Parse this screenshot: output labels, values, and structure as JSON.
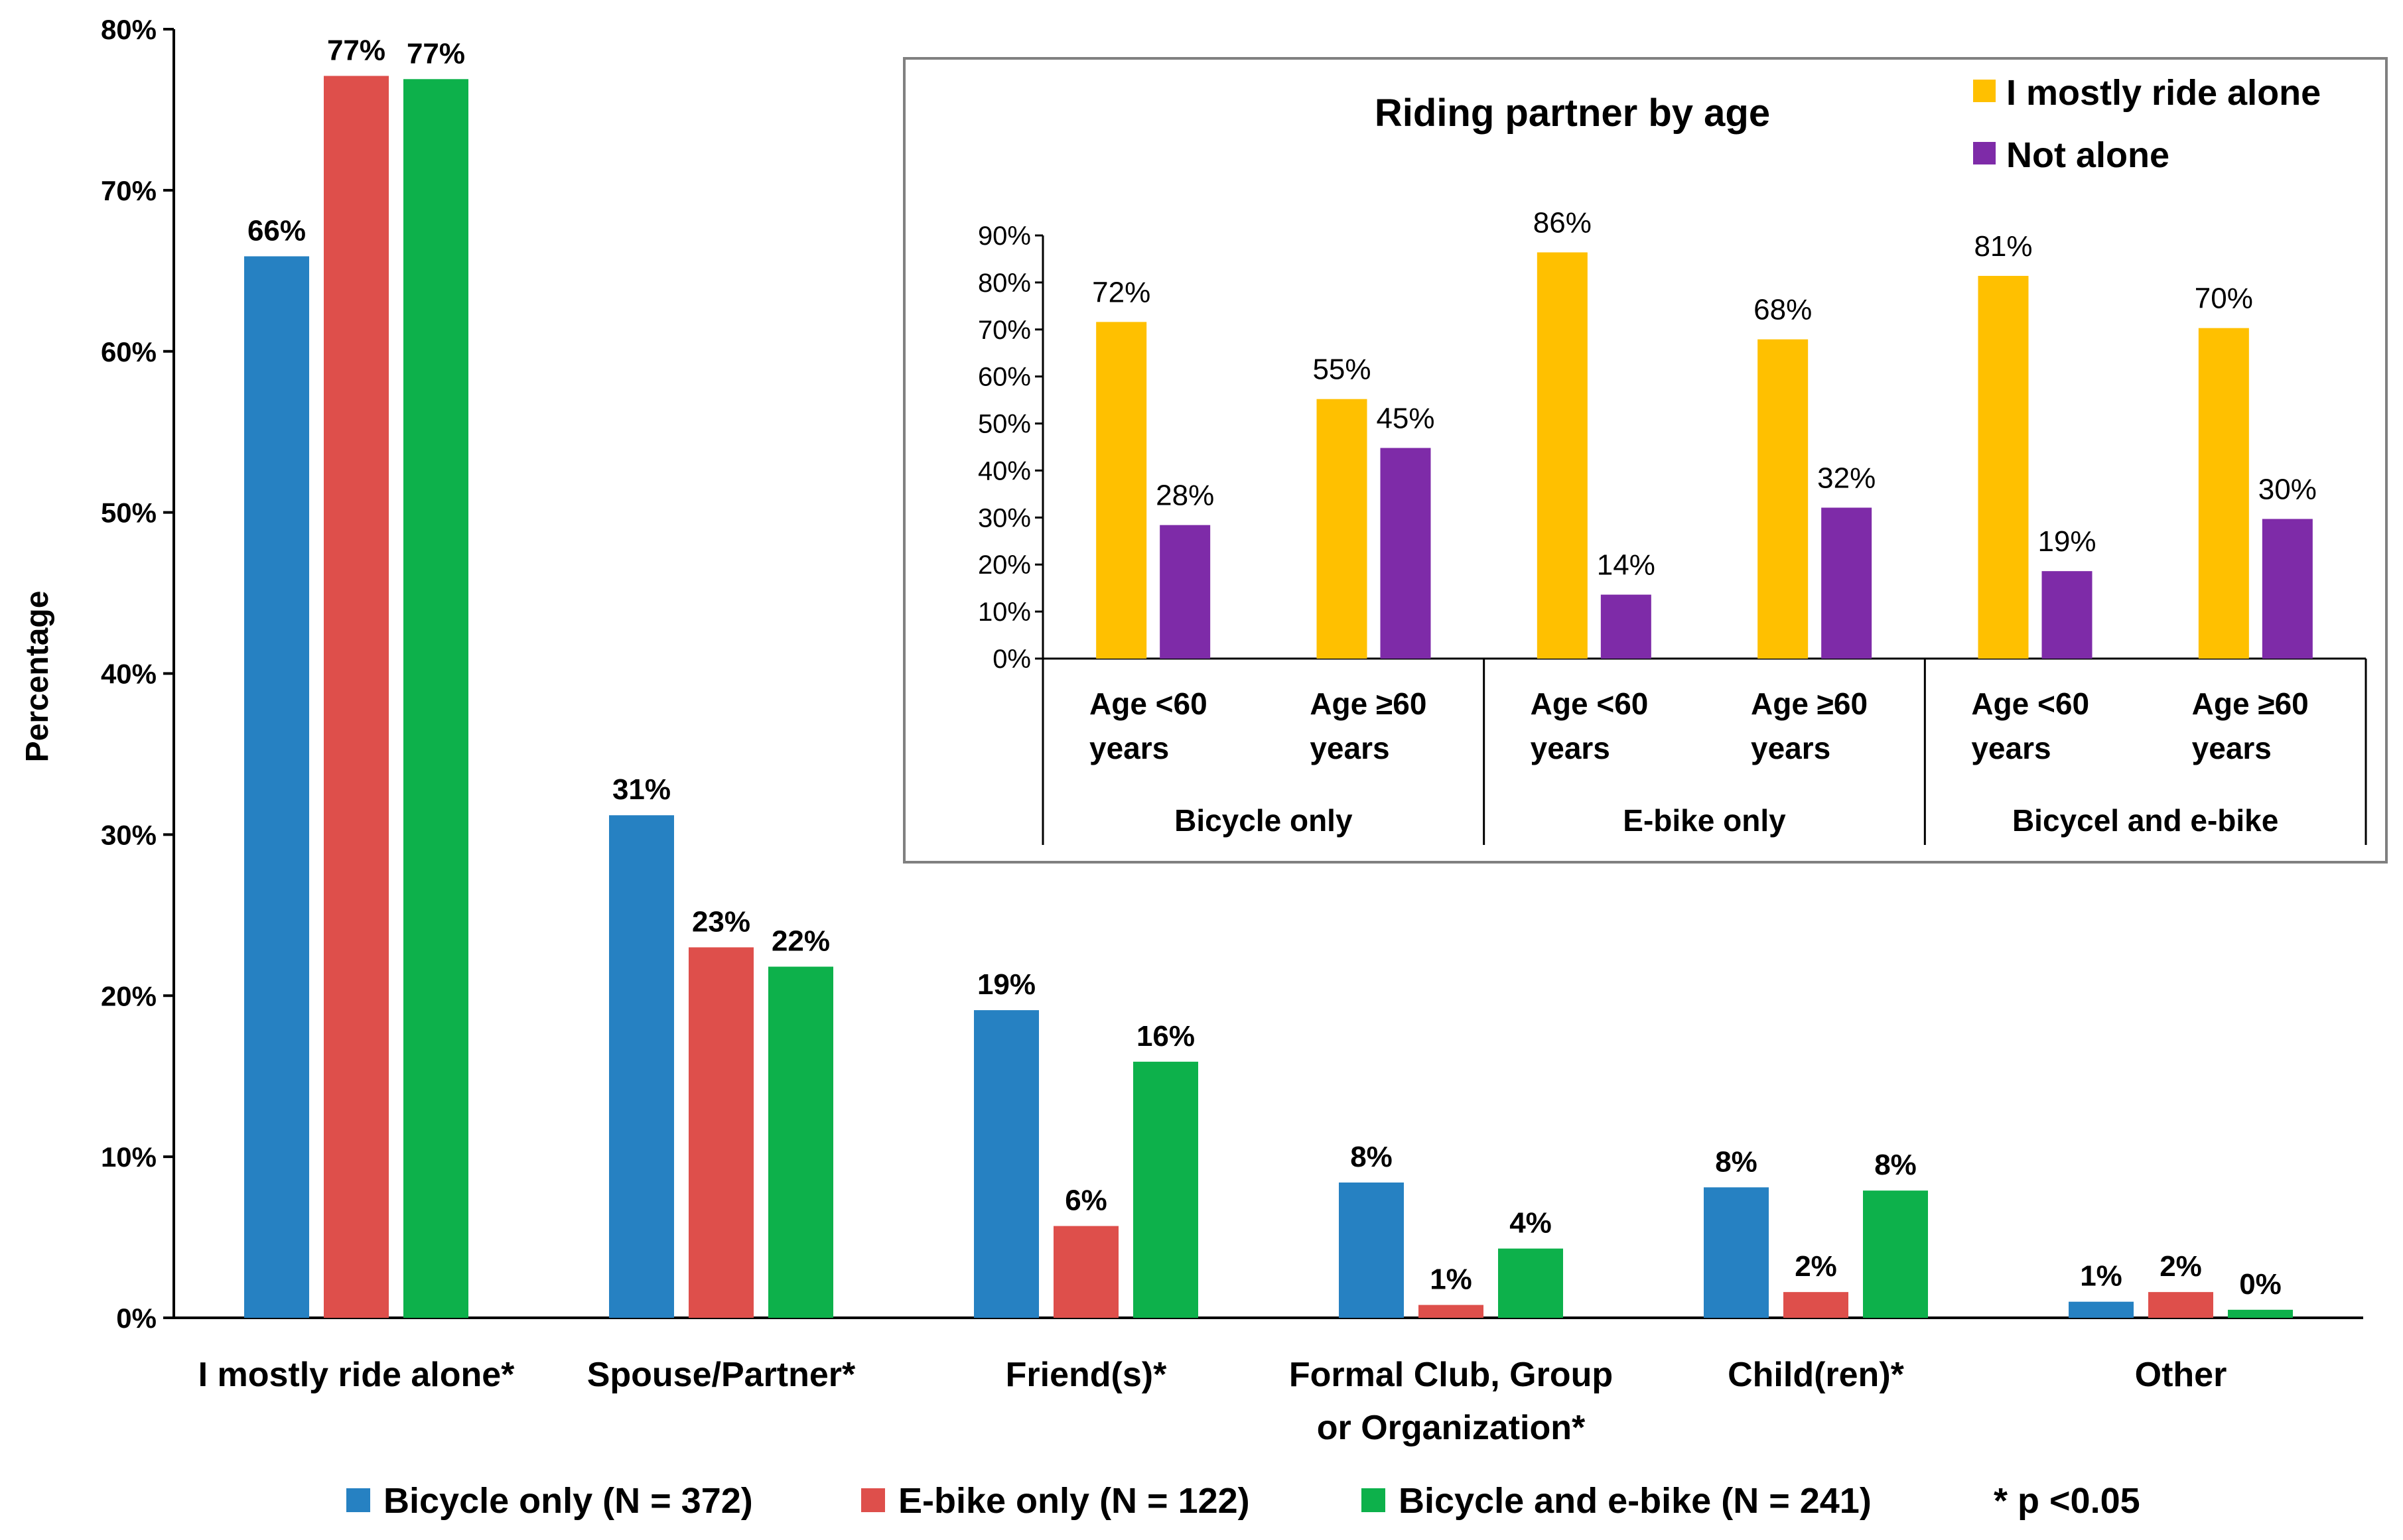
{
  "chart_data": [
    {
      "type": "bar",
      "title": "",
      "ylabel": "Percentage",
      "xlabel": "",
      "ylim": [
        0,
        80
      ],
      "y_ticks": [
        "0%",
        "10%",
        "20%",
        "30%",
        "40%",
        "50%",
        "60%",
        "70%",
        "80%"
      ],
      "categories": [
        [
          "I mostly ride alone*"
        ],
        [
          "Spouse/Partner*"
        ],
        [
          "Friend(s)*"
        ],
        [
          "Formal Club, Group",
          "or Organization*"
        ],
        [
          "Child(ren)*"
        ],
        [
          "Other"
        ]
      ],
      "series": [
        {
          "name": "Bicycle only (N = 372)",
          "color": "#2681C2",
          "values": [
            65.9,
            31.2,
            19.1,
            8.4,
            8.1,
            1.0
          ],
          "labels": [
            "66%",
            "31%",
            "19%",
            "8%",
            "8%",
            "1%"
          ]
        },
        {
          "name": "E-bike only (N = 122)",
          "color": "#DE4F4B",
          "values": [
            77.1,
            23.0,
            5.7,
            0.8,
            1.6,
            1.6
          ],
          "labels": [
            "77%",
            "23%",
            "6%",
            "1%",
            "2%",
            "2%"
          ]
        },
        {
          "name": "Bicycle and e-bike (N = 241)",
          "color": "#0DB14B",
          "values": [
            76.9,
            21.8,
            15.9,
            4.3,
            7.9,
            0.5
          ],
          "labels": [
            "77%",
            "22%",
            "16%",
            "4%",
            "8%",
            "0%"
          ]
        }
      ],
      "note": "* p <0.05",
      "legend_position": "bottom",
      "grid": false
    },
    {
      "type": "bar",
      "title": "Riding partner by age",
      "ylim": [
        0,
        90
      ],
      "y_ticks": [
        "0%",
        "10%",
        "20%",
        "30%",
        "40%",
        "50%",
        "60%",
        "70%",
        "80%",
        "90%"
      ],
      "groups": [
        "Bicycle only",
        "E-bike only",
        "Bicycel and e-bike"
      ],
      "categories": [
        [
          "Age <60",
          "years"
        ],
        [
          "Age ≥60",
          "years"
        ],
        [
          "Age <60",
          "years"
        ],
        [
          "Age ≥60",
          "years"
        ],
        [
          "Age <60",
          "years"
        ],
        [
          "Age ≥60",
          "years"
        ]
      ],
      "series": [
        {
          "name": "I mostly ride alone",
          "color": "#FFC000",
          "values": [
            71.6,
            55.2,
            86.4,
            67.9,
            81.4,
            70.3
          ],
          "labels": [
            "72%",
            "55%",
            "86%",
            "68%",
            "81%",
            "70%"
          ]
        },
        {
          "name": "Not alone",
          "color": "#7E2BA8",
          "values": [
            28.4,
            44.8,
            13.6,
            32.1,
            18.6,
            29.7
          ],
          "labels": [
            "28%",
            "45%",
            "14%",
            "32%",
            "19%",
            "30%"
          ]
        }
      ],
      "legend_position": "top-right",
      "grid": false
    }
  ]
}
